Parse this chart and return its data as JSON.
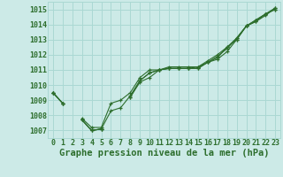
{
  "background_color": "#cceae7",
  "grid_color": "#aad8d3",
  "line_color": "#2d6e2d",
  "marker_color": "#2d6e2d",
  "xlabel": "Graphe pression niveau de la mer (hPa)",
  "xlabel_fontsize": 7.5,
  "tick_fontsize": 6,
  "xlim": [
    -0.5,
    23.5
  ],
  "ylim": [
    1006.5,
    1015.5
  ],
  "yticks": [
    1007,
    1008,
    1009,
    1010,
    1011,
    1012,
    1013,
    1014,
    1015
  ],
  "xticks": [
    0,
    1,
    2,
    3,
    4,
    5,
    6,
    7,
    8,
    9,
    10,
    11,
    12,
    13,
    14,
    15,
    16,
    17,
    18,
    19,
    20,
    21,
    22,
    23
  ],
  "series": [
    [
      1009.5,
      1008.8,
      null,
      1007.7,
      1007.0,
      1007.1,
      null,
      null,
      1009.2,
      1010.3,
      1010.8,
      1011.0,
      1011.1,
      1011.1,
      1011.1,
      1011.1,
      1011.5,
      1011.8,
      1012.5,
      1013.0,
      1013.9,
      1014.3,
      1014.7,
      1015.0
    ],
    [
      1009.5,
      1008.8,
      null,
      1007.7,
      1007.0,
      1007.1,
      null,
      null,
      1009.2,
      1010.2,
      1010.5,
      1011.0,
      1011.1,
      1011.1,
      1011.1,
      1011.1,
      1011.5,
      1011.7,
      1012.2,
      1013.0,
      1013.9,
      1014.2,
      1014.6,
      1015.1
    ],
    [
      1009.5,
      1008.8,
      null,
      1007.7,
      1007.0,
      1007.1,
      1008.3,
      1008.5,
      1009.3,
      1010.3,
      1010.8,
      1011.0,
      1011.1,
      1011.1,
      1011.1,
      1011.2,
      1011.5,
      1011.9,
      1012.4,
      1013.1,
      1013.9,
      1014.3,
      1014.7,
      1015.0
    ],
    [
      1009.5,
      1008.8,
      null,
      1007.8,
      1007.2,
      1007.2,
      1008.8,
      1009.0,
      1009.5,
      1010.5,
      1011.0,
      1011.0,
      1011.2,
      1011.2,
      1011.2,
      1011.2,
      1011.6,
      1012.0,
      1012.5,
      1013.1,
      1013.9,
      1014.2,
      1014.7,
      1015.1
    ]
  ]
}
